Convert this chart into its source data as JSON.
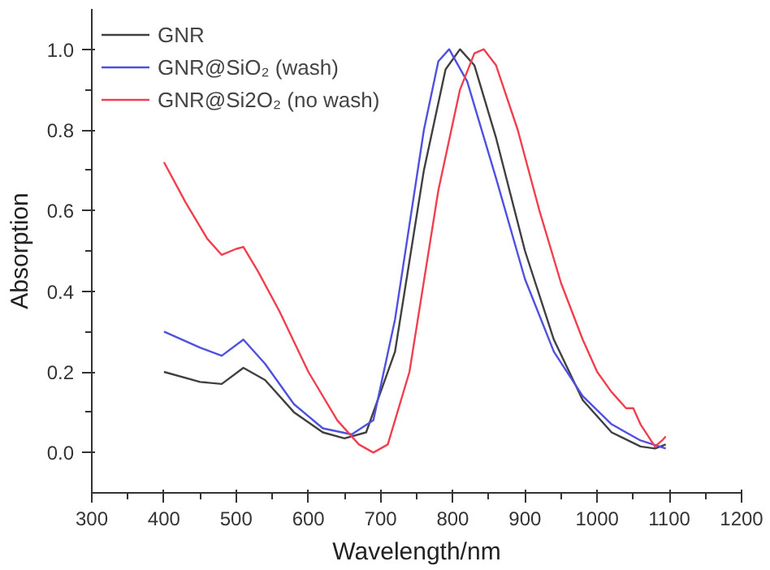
{
  "chart_data": {
    "type": "line",
    "xlabel": "Wavelength/nm",
    "ylabel": "Absorption",
    "xlim": [
      300,
      1200
    ],
    "ylim": [
      -0.1,
      1.1
    ],
    "xticks": [
      300,
      400,
      500,
      600,
      700,
      800,
      900,
      1000,
      1100,
      1200
    ],
    "yticks": [
      {
        "value": 0,
        "label": "0.0"
      },
      {
        "value": 0.2,
        "label": "0.2"
      },
      {
        "value": 0.4,
        "label": "0.4"
      },
      {
        "value": 0.6,
        "label": "0.6"
      },
      {
        "value": 0.8,
        "label": "0.8"
      },
      {
        "value": 1,
        "label": "1.0"
      }
    ],
    "grid": false,
    "legend": "top left",
    "marker": "none",
    "line_style": "solid",
    "series": [
      {
        "name": "GNR",
        "color": "#404040",
        "x": [
          400,
          450,
          480,
          510,
          540,
          580,
          620,
          650,
          680,
          720,
          760,
          790,
          810,
          830,
          860,
          900,
          940,
          980,
          1020,
          1060,
          1080,
          1095
        ],
        "values": [
          0.2,
          0.175,
          0.17,
          0.21,
          0.18,
          0.1,
          0.05,
          0.035,
          0.05,
          0.25,
          0.7,
          0.95,
          1.0,
          0.96,
          0.78,
          0.5,
          0.28,
          0.13,
          0.05,
          0.015,
          0.01,
          0.02
        ]
      },
      {
        "name": "GNR@SiO₂ (wash)",
        "color": "#5050e0",
        "x": [
          400,
          450,
          480,
          510,
          540,
          580,
          620,
          660,
          690,
          720,
          760,
          780,
          795,
          820,
          860,
          900,
          940,
          980,
          1020,
          1060,
          1095
        ],
        "values": [
          0.3,
          0.26,
          0.24,
          0.28,
          0.22,
          0.12,
          0.06,
          0.045,
          0.08,
          0.33,
          0.8,
          0.97,
          1.0,
          0.92,
          0.68,
          0.43,
          0.25,
          0.14,
          0.07,
          0.03,
          0.01
        ]
      },
      {
        "name": "GNR@Si2O₂ (no wash)",
        "color": "#f04050",
        "x": [
          400,
          430,
          460,
          480,
          500,
          510,
          530,
          560,
          600,
          640,
          670,
          690,
          710,
          740,
          780,
          810,
          830,
          843,
          860,
          890,
          920,
          950,
          980,
          1000,
          1020,
          1040,
          1050,
          1060,
          1080,
          1090,
          1095
        ],
        "values": [
          0.72,
          0.62,
          0.53,
          0.49,
          0.505,
          0.51,
          0.45,
          0.35,
          0.2,
          0.08,
          0.02,
          0.0,
          0.02,
          0.2,
          0.65,
          0.9,
          0.99,
          1.0,
          0.96,
          0.8,
          0.6,
          0.42,
          0.28,
          0.2,
          0.15,
          0.11,
          0.11,
          0.07,
          0.015,
          0.03,
          0.04
        ]
      }
    ]
  }
}
